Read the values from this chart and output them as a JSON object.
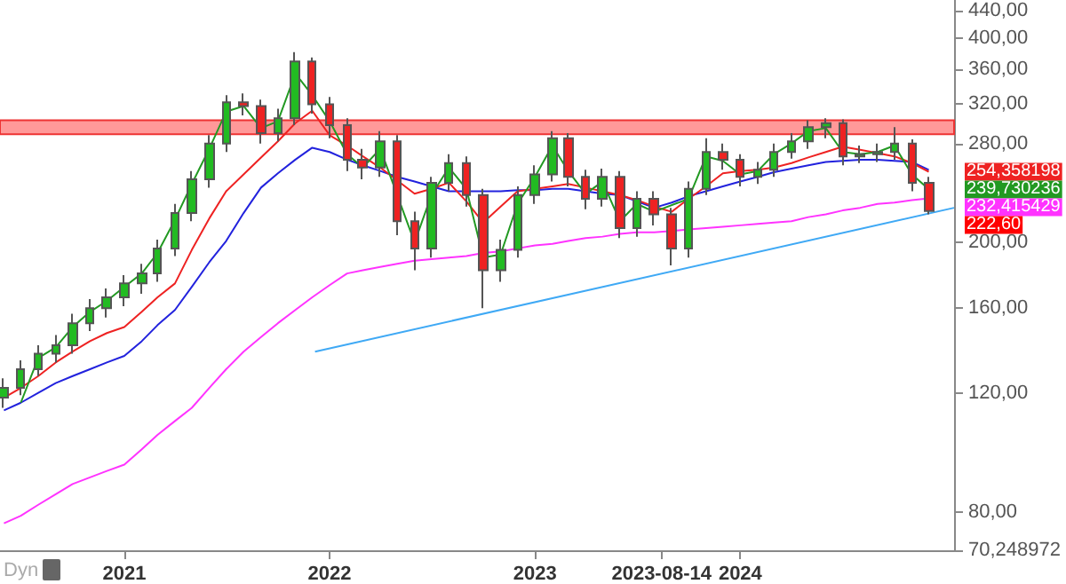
{
  "chart_data": {
    "type": "candlestick",
    "x": [
      "2020-06",
      "2020-07",
      "2020-08",
      "2020-09",
      "2020-10",
      "2020-11",
      "2020-12",
      "2021-01",
      "2021-02",
      "2021-03",
      "2021-04",
      "2021-05",
      "2021-06",
      "2021-07",
      "2021-08",
      "2021-09",
      "2021-10",
      "2021-11",
      "2021-12",
      "2022-01",
      "2022-02",
      "2022-03",
      "2022-04",
      "2022-05",
      "2022-06",
      "2022-07",
      "2022-08",
      "2022-09",
      "2022-10",
      "2022-11",
      "2022-12",
      "2023-01",
      "2023-02",
      "2023-03",
      "2023-04",
      "2023-05",
      "2023-06",
      "2023-07",
      "2023-08",
      "2023-09",
      "2023-10",
      "2023-11",
      "2023-12",
      "2024-01",
      "2024-02",
      "2024-03",
      "2024-04",
      "2024-05",
      "2024-06",
      "2024-07",
      "2024-08",
      "2024-09",
      "2024-10",
      "2024-11",
      "2024-12"
    ],
    "ohlc": [
      [
        118,
        126,
        114,
        122
      ],
      [
        122,
        134,
        119,
        130
      ],
      [
        130,
        141,
        127,
        137
      ],
      [
        137,
        146,
        133,
        141
      ],
      [
        141,
        157,
        137,
        152
      ],
      [
        152,
        165,
        148,
        160
      ],
      [
        160,
        171,
        155,
        166
      ],
      [
        166,
        179,
        161,
        174
      ],
      [
        174,
        186,
        168,
        180
      ],
      [
        180,
        202,
        175,
        196
      ],
      [
        196,
        228,
        191,
        221
      ],
      [
        221,
        255,
        215,
        248
      ],
      [
        248,
        288,
        241,
        280
      ],
      [
        280,
        330,
        272,
        322
      ],
      [
        322,
        332,
        308,
        318
      ],
      [
        318,
        325,
        280,
        290
      ],
      [
        290,
        315,
        282,
        305
      ],
      [
        305,
        382,
        298,
        370
      ],
      [
        370,
        375,
        310,
        320
      ],
      [
        320,
        328,
        285,
        298
      ],
      [
        298,
        305,
        255,
        265
      ],
      [
        265,
        275,
        248,
        258
      ],
      [
        258,
        292,
        250,
        282
      ],
      [
        282,
        288,
        205,
        215
      ],
      [
        215,
        222,
        182,
        196
      ],
      [
        196,
        250,
        190,
        245
      ],
      [
        245,
        270,
        238,
        262
      ],
      [
        262,
        268,
        226,
        235
      ],
      [
        235,
        240,
        160,
        182
      ],
      [
        182,
        202,
        175,
        195
      ],
      [
        195,
        242,
        190,
        235
      ],
      [
        235,
        260,
        228,
        252
      ],
      [
        252,
        292,
        246,
        285
      ],
      [
        285,
        290,
        242,
        250
      ],
      [
        250,
        256,
        224,
        232
      ],
      [
        232,
        257,
        226,
        250
      ],
      [
        250,
        255,
        203,
        210
      ],
      [
        210,
        238,
        204,
        232
      ],
      [
        232,
        238,
        212,
        220
      ],
      [
        220,
        225,
        185,
        196
      ],
      [
        196,
        246,
        190,
        240
      ],
      [
        240,
        285,
        235,
        272
      ],
      [
        272,
        280,
        256,
        265
      ],
      [
        265,
        270,
        242,
        250
      ],
      [
        250,
        263,
        244,
        256
      ],
      [
        256,
        280,
        250,
        272
      ],
      [
        272,
        290,
        266,
        282
      ],
      [
        282,
        303,
        275,
        296
      ],
      [
        296,
        305,
        285,
        300
      ],
      [
        300,
        304,
        260,
        268
      ],
      [
        268,
        278,
        262,
        270
      ],
      [
        270,
        280,
        263,
        272
      ],
      [
        272,
        296,
        265,
        280
      ],
      [
        280,
        284,
        238,
        245
      ],
      [
        245,
        250,
        220,
        222.6
      ]
    ],
    "series": [
      {
        "type": "line",
        "color": "#ff33ff",
        "values": [
          77,
          79,
          82,
          85,
          88,
          90,
          92,
          94,
          99,
          104,
          109,
          114,
          122,
          130,
          138,
          145,
          152,
          159,
          166,
          173,
          180,
          182,
          184,
          186,
          188,
          189,
          190,
          191,
          193,
          194,
          196,
          198,
          199,
          201,
          203,
          204,
          206,
          207,
          207,
          208,
          209,
          210,
          211,
          212,
          213,
          214,
          215,
          218,
          220,
          223,
          225,
          228,
          229,
          231,
          232.415429
        ]
      },
      {
        "type": "line",
        "color": "#2222dd",
        "values": [
          113,
          116,
          120,
          124,
          127,
          130,
          133,
          136,
          143,
          151,
          159,
          172,
          187,
          201,
          221,
          241,
          253,
          265,
          276,
          272,
          265,
          260,
          255,
          250,
          246,
          242,
          238,
          238,
          238,
          238,
          239,
          239,
          240,
          240,
          238,
          236,
          235,
          230,
          225,
          229,
          234,
          238,
          242,
          246,
          250,
          254,
          257,
          260,
          263,
          264,
          265,
          265,
          264,
          263,
          256
        ]
      },
      {
        "type": "line",
        "color": "#ee2222",
        "values": [
          118,
          122,
          127,
          133,
          138,
          143,
          147,
          150,
          158,
          166,
          174,
          195,
          217,
          238,
          252,
          267,
          282,
          300,
          313,
          288,
          278,
          268,
          258,
          247,
          236,
          240,
          245,
          230,
          214,
          226,
          238,
          240,
          242,
          244,
          241,
          238,
          235,
          231,
          226,
          222,
          232,
          242,
          253,
          255,
          256,
          258,
          262,
          267,
          272,
          277,
          274,
          271,
          268,
          262,
          254.358198
        ]
      },
      {
        "type": "line",
        "color": "#229922",
        "values": [
          null,
          116,
          135,
          140,
          150,
          158,
          164,
          172,
          180,
          193,
          216,
          244,
          275,
          312,
          318,
          295,
          302,
          355,
          330,
          302,
          270,
          258,
          275,
          null,
          200,
          235,
          258,
          240,
          190,
          192,
          228,
          250,
          278,
          255,
          236,
          246,
          215,
          228,
          222,
          null,
          232,
          268,
          264,
          252,
          255,
          270,
          280,
          292,
          295,
          272,
          270,
          272,
          278,
          252,
          239.730236
        ]
      },
      {
        "type": "line",
        "color": "#3fa9f5",
        "x": [
          "2021-12-06",
          "2025-01-15"
        ],
        "values": [
          138,
          225
        ]
      }
    ],
    "bands": [
      {
        "axis": "y",
        "from": 289,
        "to": 303,
        "color": "#ff9999"
      }
    ],
    "annotations": [
      {
        "text": "254,358198",
        "x": "2024-12",
        "y": 254.358198
      },
      {
        "text": "239,730236",
        "x": "2024-12",
        "y": 239.730236
      },
      {
        "text": "232,415429",
        "x": "2024-12",
        "y": 232.415429
      },
      {
        "text": "222,60",
        "x": "2024-12",
        "y": 222.6
      },
      "Dyn"
    ],
    "log": "y",
    "xlim": [
      "2020-05-25",
      "2025-01-15"
    ],
    "xticks": [
      "2021",
      "2022",
      "2023",
      "2023-08-14",
      "2024"
    ],
    "ylim": [
      70.248972,
      456
    ],
    "yticks": [
      {
        "value": 440,
        "label": "440,00"
      },
      {
        "value": 400,
        "label": "400,00"
      },
      {
        "value": 360,
        "label": "360,00"
      },
      {
        "value": 320,
        "label": "320,00"
      },
      {
        "value": 280,
        "label": "280,00"
      },
      {
        "value": 200,
        "label": "200,00"
      },
      {
        "value": 160,
        "label": "160,00"
      },
      {
        "value": 120,
        "label": "120,00"
      },
      {
        "value": 80,
        "label": "80,00"
      },
      {
        "value": 70.248972,
        "label": "70,248972"
      }
    ],
    "tick_labels": "xy"
  }
}
